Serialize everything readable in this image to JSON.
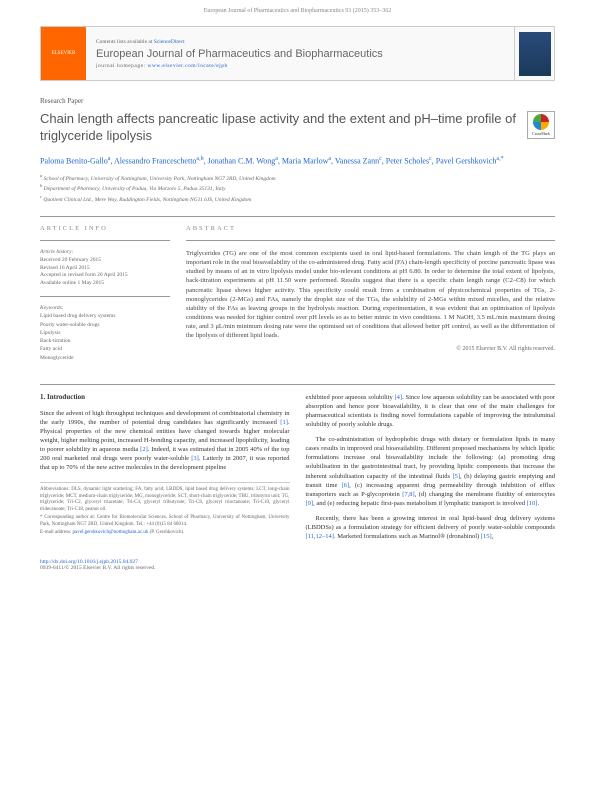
{
  "page_header": "European Journal of Pharmaceutics and Biopharmaceutics 93 (2015) 353–362",
  "banner": {
    "publisher": "ELSEVIER",
    "contents_prefix": "Contents lists available at ",
    "contents_link": "ScienceDirect",
    "journal_name": "European Journal of Pharmaceutics and Biopharmaceutics",
    "homepage_prefix": "journal homepage: ",
    "homepage_url": "www.elsevier.com/locate/ejpb"
  },
  "paper_type": "Research Paper",
  "title": "Chain length affects pancreatic lipase activity and the extent and pH–time profile of triglyceride lipolysis",
  "crossmark": "CrossMark",
  "authors_html": "Paloma Benito-Gallo<sup>a</sup>, Alessandro Franceschetto<sup>a,b</sup>, Jonathan C.M. Wong<sup>a</sup>, Maria Marlow<sup>a</sup>, Vanessa Zann<sup>c</sup>, Peter Scholes<sup>c</sup>, Pavel Gershkovich<sup>a,*</sup>",
  "affiliations": [
    "a School of Pharmacy, University of Nottingham, University Park, Nottingham NG7 2RD, United Kingdom",
    "b Department of Pharmacy, University of Padua, Via Marzolo 5, Padua 35131, Italy",
    "c Quotient Clinical Ltd., Mere Way, Ruddington Fields, Nottingham NG11 6JS, United Kingdom"
  ],
  "article_info": {
    "header": "ARTICLE INFO",
    "history_label": "Article history:",
    "history": [
      "Received 20 February 2015",
      "Revised 16 April 2015",
      "Accepted in revised form 20 April 2015",
      "Available online 1 May 2015"
    ],
    "keywords_label": "Keywords:",
    "keywords": [
      "Lipid based drug delivery systems",
      "Poorly water-soluble drugs",
      "Lipolysis",
      "Back-titration",
      "Fatty acid",
      "Monoglyceride"
    ]
  },
  "abstract": {
    "header": "ABSTRACT",
    "text": "Triglycerides (TG) are one of the most common excipients used in oral lipid-based formulations. The chain length of the TG plays an important role in the oral bioavailability of the co-administered drug. Fatty acid (FA) chain-length specificity of porcine pancreatic lipase was studied by means of an in vitro lipolysis model under bio-relevant conditions at pH 6.80. In order to determine the total extent of lipolysis, back-titration experiments at pH 11.50 were performed. Results suggest that there is a specific chain length range (C2–C8) for which pancreatic lipase shows higher activity. This specificity could result from a combination of physicochemical properties of TGs, 2-monoglycerides (2-MGs) and FAs, namely the droplet size of the TGs, the solubility of 2-MGs within mixed micelles, and the relative stability of the FAs as leaving groups in the hydrolysis reaction. During experimentation, it was evident that an optimisation of lipolysis conditions was needed for tighter control over pH levels so as to better mimic in vivo conditions. 1 M NaOH, 3.5 mL/min maximum dosing rate, and 3 μL/min minimum dosing rate were the optimised set of conditions that allowed better pH control, as well as the differentiation of the lipolysis of different lipid loads.",
    "copyright": "© 2015 Elsevier B.V. All rights reserved."
  },
  "body": {
    "intro_header": "1. Introduction",
    "col1_p1": "Since the advent of high throughput techniques and development of combinatorial chemistry in the early 1990s, the number of potential drug candidates has significantly increased [1]. Physical properties of the new chemical entities have changed towards higher molecular weight, higher melting point, increased H-bonding capacity, and increased lipophilicity, leading to poorer solubility in aqueous media [2]. Indeed, it was estimated that in 2005 40% of the top 200 oral marketed oral drugs were poorly water-soluble [3]. Latterly in 2007, it was reported that up to 70% of the new active molecules in the development pipeline",
    "col2_p1": "exhibited poor aqueous solubility [4]. Since low aqueous solubility can be associated with poor absorption and hence poor bioavailability, it is clear that one of the main challenges for pharmaceutical scientists is finding novel formulations capable of improving the intraluminal solubility of poorly soluble drugs.",
    "col2_p2": "The co-administration of hydrophobic drugs with dietary or formulation lipids in many cases results in improved oral bioavailability. Different proposed mechanisms by which lipidic formulations increase oral bioavailability include the following: (a) promoting drug solubilisation in the gastrointestinal tract, by providing lipidic components that increase the inherent solubilisation capacity of the intestinal fluids [5], (b) delaying gastric emptying and transit time [6], (c) increasing apparent drug permeability through inhibition of efflux transporters such as P-glycoprotein [7,8], (d) changing the membrane fluidity of enterocytes [9], and (e) reducing hepatic first-pass metabolism if lymphatic transport is involved [10].",
    "col2_p3": "Recently, there has been a growing interest in oral lipid-based drug delivery systems (LBDDSs) as a formulation strategy for efficient delivery of poorly water-soluble compounds [11,12–14]. Marketed formulations such as Marinol® (dronabinol) [15],"
  },
  "footnotes": {
    "abbrev": "Abbreviations: DLS, dynamic light scattering; FA, fatty acid; LBDDS, lipid based drug delivery systems; LCT, long-chain triglyceride; MCT, medium-chain triglyceride; MG, monoglyceride; SCT, short-chain triglyceride; TBU, tributyrin unit; TG, triglyceride; Tri-C2, glyceryl triacetate; Tri-C4, glyceryl tributyrate; Tri-C8, glyceryl trioctanoate; Tri-C10, glyceryl tridecanoate; Tri-C18, peanut oil.",
    "corresp": "* Corresponding author at: Centre for Biomolecular Sciences, School of Pharmacy, University of Nottingham, University Park, Nottingham NG7 2RD, United Kingdom. Tel.: +44 (0)15 84 68014.",
    "email_label": "E-mail address: ",
    "email": "pavel.gershkovich@nottingham.ac.uk",
    "email_suffix": " (P. Gershkovich)."
  },
  "doi": {
    "url": "http://dx.doi.org/10.1016/j.ejpb.2015.04.027",
    "issn": "0939-6411/© 2015 Elsevier B.V. All rights reserved."
  }
}
